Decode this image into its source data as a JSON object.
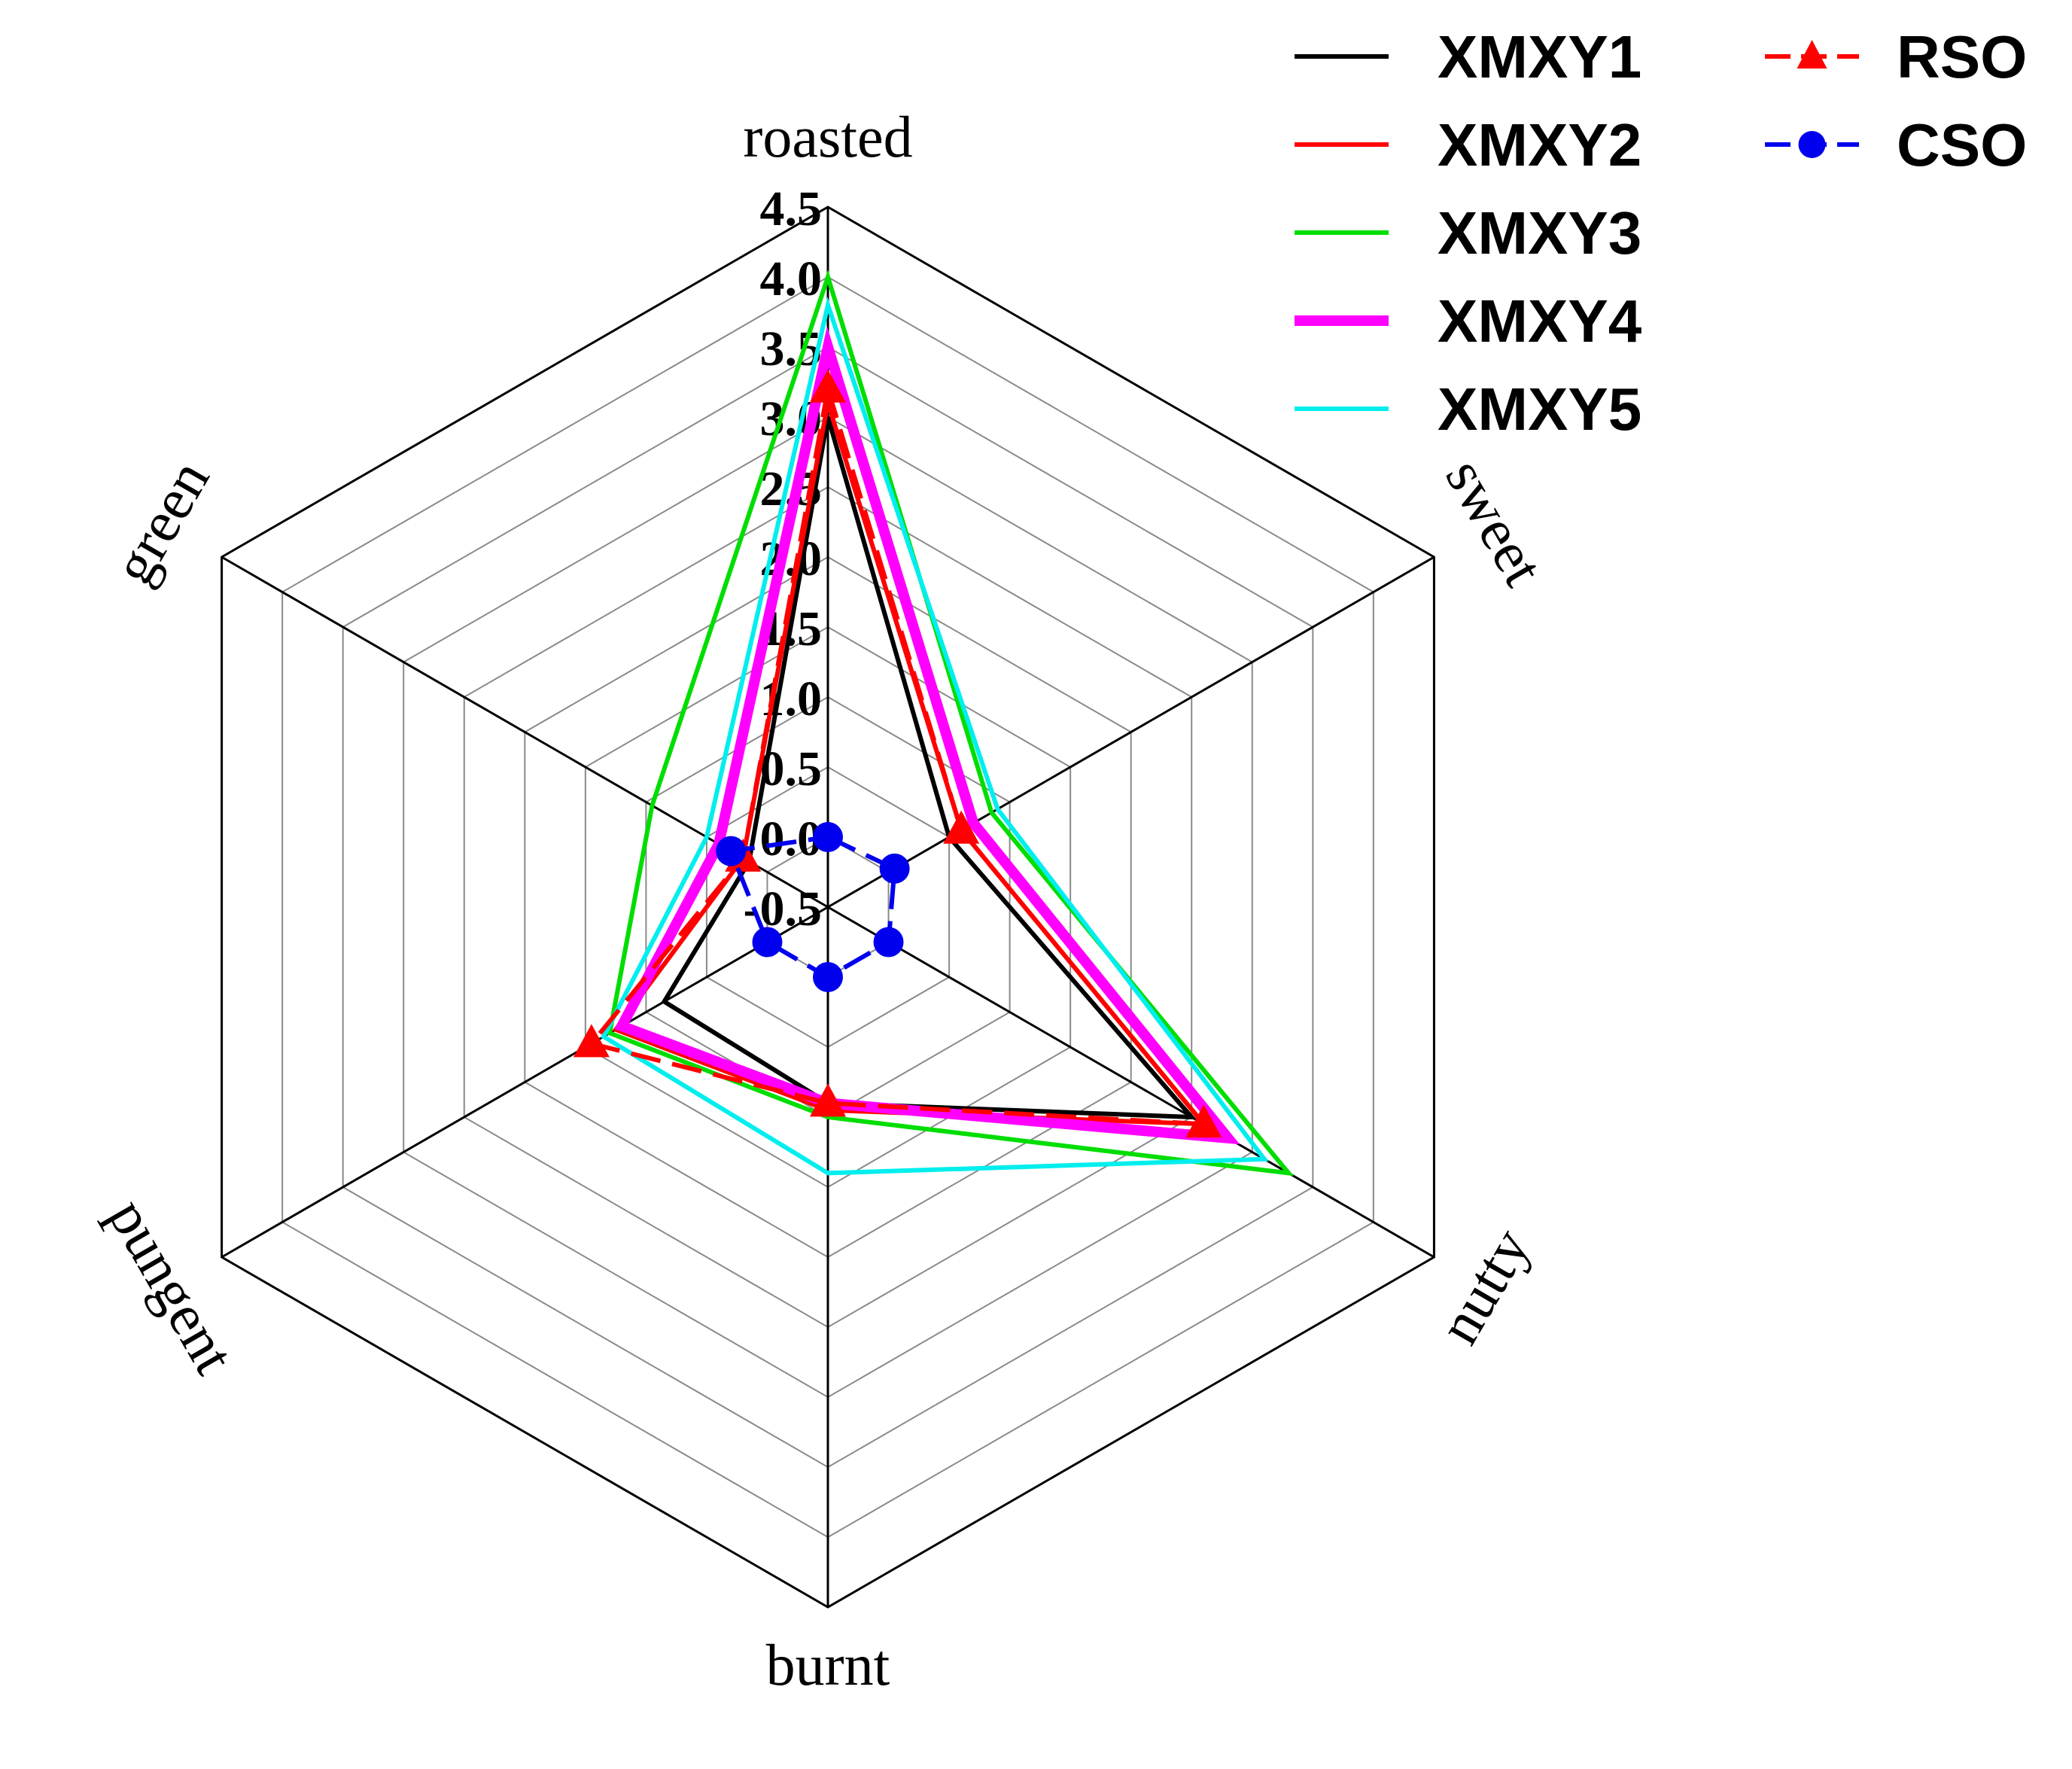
{
  "chart_data": {
    "type": "radar",
    "axes": [
      "roasted",
      "sweet",
      "nutty",
      "burnt",
      "pungent",
      "green"
    ],
    "r_range": [
      -0.5,
      4.5
    ],
    "r_ticks": [
      "-0.5",
      "0.0",
      "0.5",
      "1.0",
      "1.5",
      "2.0",
      "2.5",
      "3.0",
      "3.5",
      "4.0",
      "4.5"
    ],
    "grid": true,
    "legend_position": "top-right",
    "series": [
      {
        "name": "XMXY1",
        "color": "#000000",
        "marker": "none",
        "values": [
          3.0,
          0.5,
          2.5,
          0.9,
          0.85,
          0.15
        ]
      },
      {
        "name": "XMXY2",
        "color": "#ff0000",
        "marker": "none",
        "values": [
          3.1,
          0.6,
          2.6,
          0.95,
          1.25,
          0.2
        ]
      },
      {
        "name": "XMXY3",
        "color": "#00dd00",
        "marker": "none",
        "values": [
          4.0,
          0.85,
          3.3,
          1.0,
          1.3,
          0.95
        ]
      },
      {
        "name": "XMXY4",
        "color": "#ff00ff",
        "marker": "none",
        "values": [
          3.5,
          0.7,
          2.8,
          0.9,
          1.2,
          0.4
        ]
      },
      {
        "name": "XMXY5",
        "color": "#00eeee",
        "marker": "none",
        "values": [
          3.8,
          0.9,
          3.1,
          1.4,
          1.35,
          0.5
        ]
      },
      {
        "name": "RSO",
        "color": "#ff0000",
        "marker": "triangle",
        "dashed": true,
        "values": [
          3.2,
          0.6,
          2.6,
          0.9,
          1.45,
          0.2
        ]
      },
      {
        "name": "CSO",
        "color": "#0000ee",
        "marker": "circle",
        "dashed": true,
        "values": [
          0.0,
          0.05,
          0.0,
          0.0,
          0.0,
          0.3
        ]
      }
    ]
  }
}
